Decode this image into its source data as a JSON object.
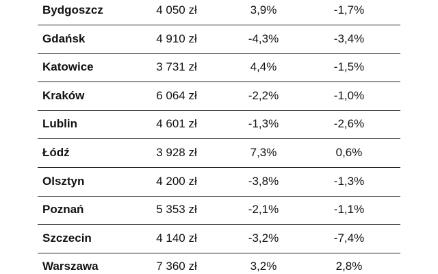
{
  "table": {
    "rows": [
      [
        "Bydgoszcz",
        "4 050 zł",
        "3,9%",
        "-1,7%"
      ],
      [
        "Gdańsk",
        "4 910 zł",
        "-4,3%",
        "-3,4%"
      ],
      [
        "Katowice",
        "3 731 zł",
        "4,4%",
        "-1,5%"
      ],
      [
        "Kraków",
        "6 064 zł",
        "-2,2%",
        "-1,0%"
      ],
      [
        "Lublin",
        "4 601 zł",
        "-1,3%",
        "-2,6%"
      ],
      [
        "Łódź",
        "3 928 zł",
        "7,3%",
        "0,6%"
      ],
      [
        "Olsztyn",
        "4 200 zł",
        "-3,8%",
        "-1,3%"
      ],
      [
        "Poznań",
        "5 353 zł",
        "-2,1%",
        "-1,1%"
      ],
      [
        "Szczecin",
        "4 140 zł",
        "-3,2%",
        "-7,4%"
      ],
      [
        "Warszawa",
        "7 360 zł",
        "3,2%",
        "2,8%"
      ]
    ]
  }
}
